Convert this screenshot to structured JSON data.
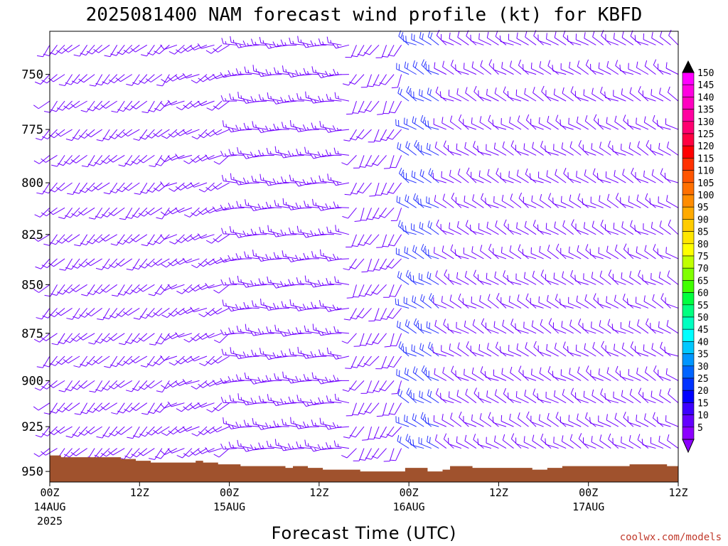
{
  "chart_data": {
    "type": "wind_barb_time_height",
    "title": "2025081400 NAM forecast wind profile (kt) for KBFD",
    "xlabel": "Forecast Time (UTC)",
    "credit": "coolwx.com/models",
    "x_ticks": [
      {
        "hours": 0,
        "label": "00Z",
        "date": "14AUG",
        "year": "2025"
      },
      {
        "hours": 12,
        "label": "12Z",
        "date": "",
        "year": ""
      },
      {
        "hours": 24,
        "label": "00Z",
        "date": "15AUG",
        "year": ""
      },
      {
        "hours": 36,
        "label": "12Z",
        "date": "",
        "year": ""
      },
      {
        "hours": 48,
        "label": "00Z",
        "date": "16AUG",
        "year": ""
      },
      {
        "hours": 60,
        "label": "12Z",
        "date": "",
        "year": ""
      },
      {
        "hours": 72,
        "label": "00Z",
        "date": "17AUG",
        "year": ""
      },
      {
        "hours": 84,
        "label": "12Z",
        "date": "",
        "year": ""
      }
    ],
    "x_range_hours": [
      0,
      84
    ],
    "y_ticks": [
      750,
      775,
      800,
      825,
      850,
      875,
      900,
      925,
      950
    ],
    "y_range_hpa": [
      731,
      956
    ],
    "y_log_pressure": true,
    "time_step_hours": 1,
    "pressure_levels": [
      737,
      750,
      762,
      775,
      787,
      800,
      812,
      825,
      837,
      850,
      862,
      875,
      887,
      900,
      912,
      925,
      937,
      950
    ],
    "surface_pressure": [
      {
        "hours": 0,
        "p": 941
      },
      {
        "hours": 1.5,
        "p": 942
      },
      {
        "hours": 9.5,
        "p": 943
      },
      {
        "hours": 11.5,
        "p": 944
      },
      {
        "hours": 13.5,
        "p": 945
      },
      {
        "hours": 19.5,
        "p": 944
      },
      {
        "hours": 20.5,
        "p": 945
      },
      {
        "hours": 22.5,
        "p": 946
      },
      {
        "hours": 25.5,
        "p": 947
      },
      {
        "hours": 31.5,
        "p": 948
      },
      {
        "hours": 32.5,
        "p": 947
      },
      {
        "hours": 34.5,
        "p": 948
      },
      {
        "hours": 36.5,
        "p": 949
      },
      {
        "hours": 41.5,
        "p": 950
      },
      {
        "hours": 47.5,
        "p": 948
      },
      {
        "hours": 50.5,
        "p": 950
      },
      {
        "hours": 52.5,
        "p": 949
      },
      {
        "hours": 53.5,
        "p": 947
      },
      {
        "hours": 56.5,
        "p": 948
      },
      {
        "hours": 64.5,
        "p": 949
      },
      {
        "hours": 66.5,
        "p": 948
      },
      {
        "hours": 68.5,
        "p": 947
      },
      {
        "hours": 77.5,
        "p": 946
      },
      {
        "hours": 82.5,
        "p": 947
      },
      {
        "hours": 84,
        "p": 947
      }
    ],
    "colorbar": {
      "min": 5,
      "max": 150,
      "step": 5,
      "unit": "kt",
      "labels": [
        150,
        145,
        140,
        135,
        130,
        125,
        120,
        115,
        110,
        105,
        100,
        95,
        90,
        85,
        80,
        75,
        70,
        65,
        60,
        55,
        50,
        45,
        40,
        35,
        30,
        25,
        20,
        15,
        10,
        5
      ],
      "colors": [
        "#ff00ff",
        "#ff00e0",
        "#ff00c0",
        "#ff00a0",
        "#ff0070",
        "#ff0040",
        "#ff0000",
        "#ff3000",
        "#ff5500",
        "#ff7000",
        "#ff8c00",
        "#ffaa00",
        "#ffcc00",
        "#ffe600",
        "#ffff00",
        "#c0ff00",
        "#80ff00",
        "#40ff00",
        "#00ff40",
        "#00ff80",
        "#00ffc0",
        "#00ffff",
        "#00c8ff",
        "#0096ff",
        "#0064ff",
        "#0032ff",
        "#0000ff",
        "#3c00ff",
        "#6400ff",
        "#8c00ff"
      ]
    },
    "colors": {
      "barb_main": "#7000ff",
      "barb_stronger": "#2a36ff",
      "terrain": "#a0522d"
    },
    "regimes": [
      {
        "from": 0,
        "to": 16,
        "dir": 225,
        "spd": 10
      },
      {
        "from": 17,
        "to": 24,
        "dir": 240,
        "spd": 10
      },
      {
        "from": 25,
        "to": 40,
        "dir": 270,
        "spd": 14
      },
      {
        "from": 41,
        "to": 47,
        "dir": 210,
        "spd": 10
      },
      {
        "from": 48,
        "to": 52,
        "dir": 300,
        "spd": 20
      },
      {
        "from": 53,
        "to": 84,
        "dir": 300,
        "spd": 10
      }
    ]
  }
}
